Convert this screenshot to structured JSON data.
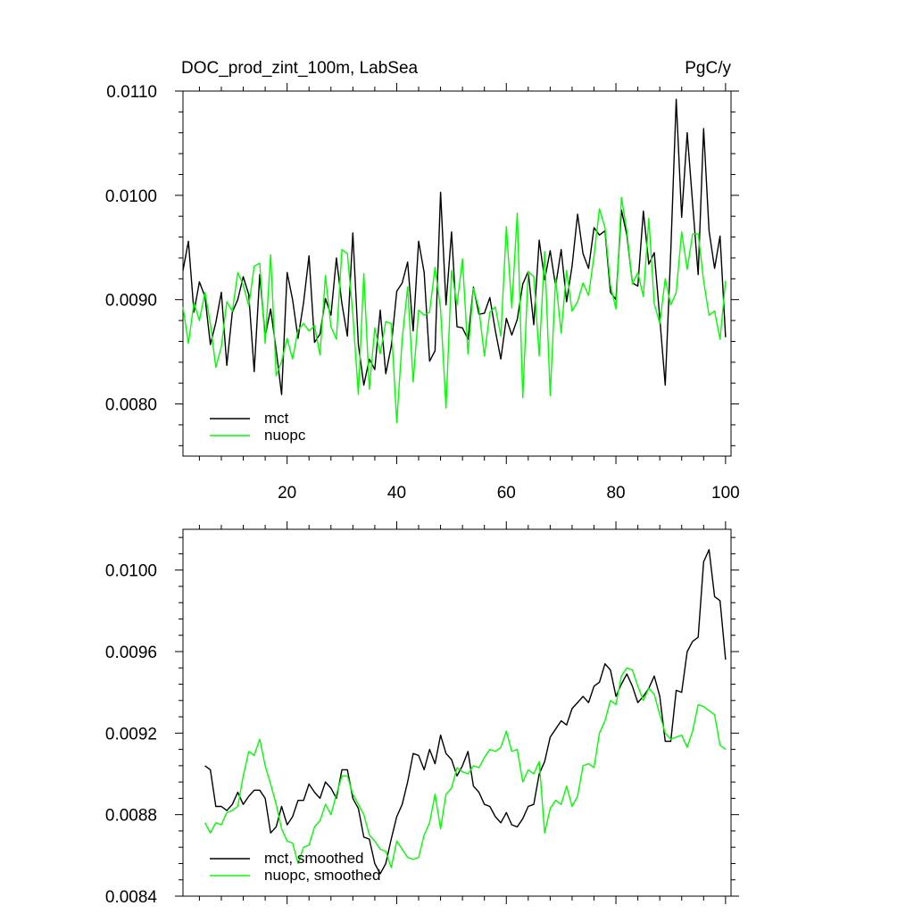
{
  "chart_data": [
    {
      "type": "line",
      "title": "DOC_prod_zint_100m, LabSea",
      "units": "PgC/y",
      "xlim": [
        1,
        101
      ],
      "ylim": [
        0.0075,
        0.011
      ],
      "x_ticks": [
        20,
        40,
        60,
        80,
        100
      ],
      "x_tick_labels": [
        "20",
        "40",
        "60",
        "80",
        "100"
      ],
      "y_ticks": [
        0.008,
        0.009,
        0.01,
        0.011
      ],
      "y_tick_labels": [
        "0.0080",
        "0.0090",
        "0.0100",
        "0.0110"
      ],
      "legend_position": "bottom-left",
      "series": [
        {
          "name": "mct",
          "color": "#000000",
          "x_start": 1,
          "values": [
            0.00928,
            0.00956,
            0.00888,
            0.00917,
            0.00903,
            0.00857,
            0.00878,
            0.00907,
            0.00837,
            0.00888,
            0.009,
            0.00922,
            0.00905,
            0.00831,
            0.00924,
            0.00865,
            0.00891,
            0.00852,
            0.00809,
            0.00926,
            0.009,
            0.00863,
            0.00897,
            0.00942,
            0.00859,
            0.00867,
            0.00901,
            0.00885,
            0.0094,
            0.00896,
            0.00865,
            0.00964,
            0.00857,
            0.00818,
            0.00843,
            0.00833,
            0.0089,
            0.00829,
            0.00855,
            0.00908,
            0.00916,
            0.00936,
            0.0087,
            0.00956,
            0.00926,
            0.00841,
            0.00851,
            0.01003,
            0.00895,
            0.00965,
            0.00874,
            0.00873,
            0.00862,
            0.00912,
            0.00886,
            0.00887,
            0.00902,
            0.0087,
            0.00843,
            0.00882,
            0.00866,
            0.00881,
            0.00915,
            0.00927,
            0.00876,
            0.00957,
            0.00919,
            0.00947,
            0.00913,
            0.00948,
            0.00898,
            0.00932,
            0.00982,
            0.00944,
            0.0093,
            0.00969,
            0.00962,
            0.00966,
            0.00907,
            0.009,
            0.00986,
            0.00962,
            0.00916,
            0.00913,
            0.00985,
            0.00934,
            0.00945,
            0.00882,
            0.00818,
            0.00946,
            0.01092,
            0.00979,
            0.0106,
            0.00992,
            0.00924,
            0.01064,
            0.00966,
            0.0093,
            0.00961,
            0.00864
          ]
        },
        {
          "name": "nuopc",
          "color": "#00ff00",
          "x_start": 1,
          "values": [
            0.00893,
            0.00858,
            0.00897,
            0.0088,
            0.00907,
            0.00877,
            0.00835,
            0.00855,
            0.00898,
            0.00889,
            0.00926,
            0.00914,
            0.00894,
            0.00932,
            0.00935,
            0.00858,
            0.00943,
            0.00827,
            0.00841,
            0.00863,
            0.00843,
            0.00871,
            0.00877,
            0.0087,
            0.00875,
            0.00847,
            0.00923,
            0.00874,
            0.00862,
            0.00948,
            0.00944,
            0.00886,
            0.00809,
            0.00925,
            0.00814,
            0.00873,
            0.00848,
            0.00879,
            0.00877,
            0.00782,
            0.00862,
            0.00912,
            0.00821,
            0.0089,
            0.00885,
            0.00888,
            0.00931,
            0.00891,
            0.00796,
            0.00928,
            0.00895,
            0.00939,
            0.00848,
            0.00911,
            0.00891,
            0.00846,
            0.00888,
            0.00893,
            0.00865,
            0.0097,
            0.00892,
            0.00983,
            0.00806,
            0.00927,
            0.00922,
            0.00846,
            0.00946,
            0.00808,
            0.0092,
            0.00868,
            0.00928,
            0.00889,
            0.00898,
            0.00916,
            0.00904,
            0.00942,
            0.00987,
            0.00969,
            0.00914,
            0.00891,
            0.00998,
            0.00966,
            0.00915,
            0.00926,
            0.00903,
            0.00978,
            0.00896,
            0.00877,
            0.0092,
            0.00895,
            0.00907,
            0.00965,
            0.00929,
            0.00963,
            0.00963,
            0.00918,
            0.00885,
            0.00889,
            0.00862,
            0.00918
          ]
        }
      ]
    },
    {
      "type": "line",
      "title": "",
      "units": "",
      "xlim": [
        1,
        101
      ],
      "ylim": [
        0.0084,
        0.0102
      ],
      "x_ticks": [
        20,
        40,
        60,
        80,
        100
      ],
      "x_tick_labels": [],
      "y_ticks": [
        0.0084,
        0.0088,
        0.0092,
        0.0096,
        0.01
      ],
      "y_tick_labels": [
        "0.0084",
        "0.0088",
        "0.0092",
        "0.0096",
        "0.0100"
      ],
      "legend_position": "bottom-left",
      "series": [
        {
          "name": "mct, smoothed",
          "color": "#000000",
          "x_start": 5,
          "values": [
            0.00904,
            0.00902,
            0.00884,
            0.00884,
            0.00882,
            0.00885,
            0.00891,
            0.00885,
            0.00889,
            0.00892,
            0.00892,
            0.00888,
            0.00871,
            0.00874,
            0.00884,
            0.00875,
            0.00879,
            0.00887,
            0.00887,
            0.00895,
            0.00891,
            0.00888,
            0.00896,
            0.00893,
            0.00888,
            0.00902,
            0.00902,
            0.00888,
            0.00883,
            0.00869,
            0.00868,
            0.00856,
            0.00851,
            0.00856,
            0.00868,
            0.00879,
            0.00885,
            0.00896,
            0.0091,
            0.00909,
            0.00902,
            0.00912,
            0.00905,
            0.00919,
            0.0091,
            0.00907,
            0.00899,
            0.00904,
            0.00911,
            0.00894,
            0.00891,
            0.00885,
            0.00884,
            0.00879,
            0.00876,
            0.00881,
            0.00875,
            0.00874,
            0.00878,
            0.00884,
            0.00885,
            0.009,
            0.00906,
            0.00918,
            0.00922,
            0.00926,
            0.00924,
            0.00932,
            0.00935,
            0.00938,
            0.00935,
            0.00943,
            0.00945,
            0.00954,
            0.00951,
            0.00938,
            0.00944,
            0.00949,
            0.00943,
            0.00935,
            0.00938,
            0.00942,
            0.00948,
            0.00938,
            0.00916,
            0.00916,
            0.00941,
            0.0094,
            0.0096,
            0.00965,
            0.00967,
            0.01004,
            0.0101,
            0.00987,
            0.00985,
            0.00956
          ]
        },
        {
          "name": "nuopc, smoothed",
          "color": "#00ff00",
          "x_start": 5,
          "values": [
            0.00876,
            0.00871,
            0.00876,
            0.00875,
            0.00881,
            0.00882,
            0.00884,
            0.00899,
            0.00911,
            0.00909,
            0.00917,
            0.00904,
            0.00895,
            0.00885,
            0.00873,
            0.00867,
            0.00866,
            0.00856,
            0.00864,
            0.00865,
            0.00874,
            0.00877,
            0.00885,
            0.0088,
            0.0089,
            0.00899,
            0.00899,
            0.0089,
            0.00885,
            0.0088,
            0.0087,
            0.00867,
            0.00863,
            0.00862,
            0.00854,
            0.00867,
            0.00863,
            0.00859,
            0.00858,
            0.00859,
            0.0087,
            0.00876,
            0.0089,
            0.00873,
            0.0089,
            0.00893,
            0.00903,
            0.00901,
            0.009,
            0.00904,
            0.00903,
            0.00908,
            0.00912,
            0.00911,
            0.00913,
            0.00921,
            0.00911,
            0.00912,
            0.00896,
            0.00902,
            0.009,
            0.00906,
            0.00871,
            0.00883,
            0.00887,
            0.00885,
            0.00894,
            0.00884,
            0.00889,
            0.00904,
            0.00905,
            0.00903,
            0.0092,
            0.00926,
            0.00936,
            0.00934,
            0.00948,
            0.00952,
            0.00951,
            0.00943,
            0.00936,
            0.00942,
            0.00939,
            0.00929,
            0.0092,
            0.00917,
            0.00918,
            0.00919,
            0.00913,
            0.00921,
            0.00934,
            0.00933,
            0.00931,
            0.00929,
            0.00914,
            0.00912
          ]
        }
      ]
    }
  ]
}
